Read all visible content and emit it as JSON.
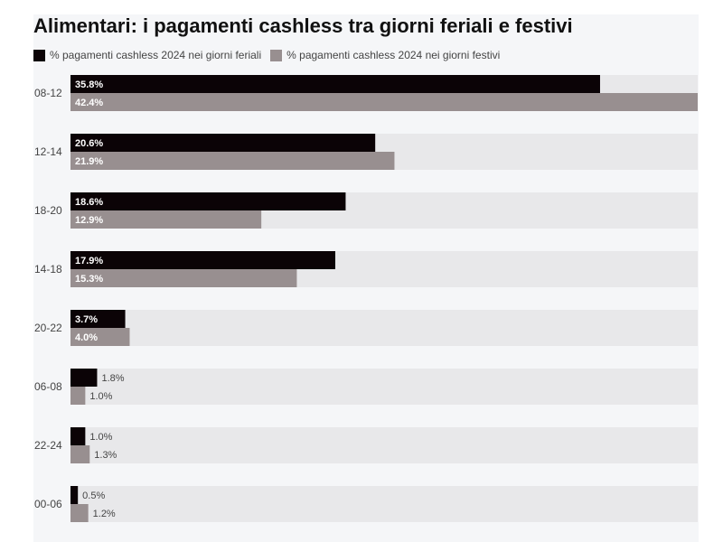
{
  "chart_data": {
    "type": "bar",
    "orientation": "horizontal",
    "title": "Alimentari: i pagamenti cashless tra giorni feriali e festivi",
    "categories": [
      "08-12",
      "12-14",
      "18-20",
      "14-18",
      "20-22",
      "06-08",
      "22-24",
      "00-06"
    ],
    "series": [
      {
        "name": "% pagamenti cashless 2024 nei giorni feriali",
        "color": "#0b0306",
        "values": [
          35.8,
          20.6,
          18.6,
          17.9,
          3.7,
          1.8,
          1.0,
          0.5
        ],
        "labels": [
          "35.8%",
          "20.6%",
          "18.6%",
          "17.9%",
          "3.7%",
          "1.8%",
          "1.0%",
          "0.5%"
        ]
      },
      {
        "name": "% pagamenti cashless 2024 nei giorni festivi",
        "color": "#988f90",
        "values": [
          42.4,
          21.9,
          12.9,
          15.3,
          4.0,
          1.0,
          1.3,
          1.2
        ],
        "labels": [
          "42.4%",
          "21.9%",
          "12.9%",
          "15.3%",
          "4.0%",
          "1.0%",
          "1.3%",
          "1.2%"
        ]
      }
    ],
    "xlim": [
      0,
      42.4
    ],
    "legend_position": "top-left",
    "row_background": "#e8e8ea"
  }
}
